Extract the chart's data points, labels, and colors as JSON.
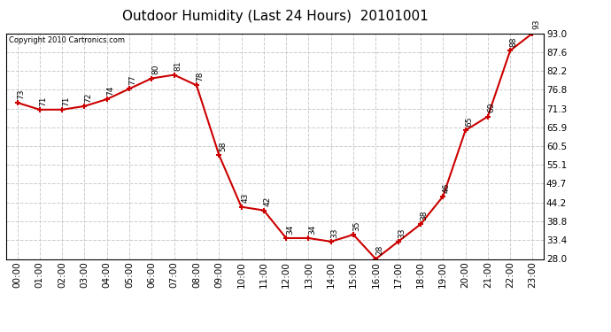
{
  "title": "Outdoor Humidity (Last 24 Hours)  20101001",
  "copyright": "Copyright 2010 Cartronics.com",
  "hours": [
    0,
    1,
    2,
    3,
    4,
    5,
    6,
    7,
    8,
    9,
    10,
    11,
    12,
    13,
    14,
    15,
    16,
    17,
    18,
    19,
    20,
    21,
    22,
    23
  ],
  "hour_labels": [
    "00:00",
    "01:00",
    "02:00",
    "03:00",
    "04:00",
    "05:00",
    "06:00",
    "07:00",
    "08:00",
    "09:00",
    "10:00",
    "11:00",
    "12:00",
    "13:00",
    "14:00",
    "15:00",
    "16:00",
    "17:00",
    "18:00",
    "19:00",
    "20:00",
    "21:00",
    "22:00",
    "23:00"
  ],
  "values": [
    73,
    71,
    71,
    72,
    74,
    77,
    80,
    81,
    78,
    58,
    43,
    42,
    34,
    34,
    33,
    35,
    28,
    33,
    38,
    46,
    65,
    69,
    88,
    93
  ],
  "line_color": "#cc0000",
  "marker_color": "#cc0000",
  "bg_color": "#ffffff",
  "grid_color": "#cccccc",
  "title_fontsize": 11,
  "tick_fontsize": 7.5,
  "annotation_fontsize": 6.5,
  "ylim": [
    28.0,
    93.0
  ],
  "yticks": [
    28.0,
    33.4,
    38.8,
    44.2,
    49.7,
    55.1,
    60.5,
    65.9,
    71.3,
    76.8,
    82.2,
    87.6,
    93.0
  ]
}
